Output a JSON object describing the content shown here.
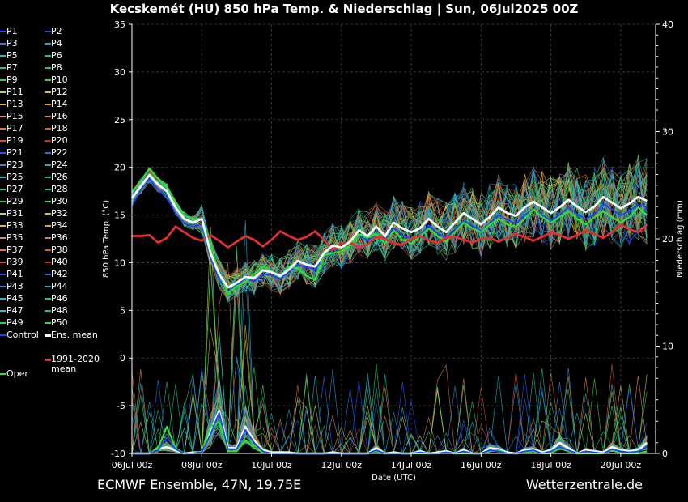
{
  "title": "Kecskemét  (HU)  850 hPa Temp. & Niederschlag | Sun, 06Jul2025 00Z",
  "footer_left": "ECMWF Ensemble, 47N, 19.75E",
  "footer_right": "Wetterzentrale.de",
  "legend": [
    {
      "label": "P1",
      "color": "#3050ff"
    },
    {
      "label": "P2",
      "color": "#2050e0"
    },
    {
      "label": "P3",
      "color": "#2b7bd6"
    },
    {
      "label": "P4",
      "color": "#2aa0d0"
    },
    {
      "label": "P5",
      "color": "#22b8c8"
    },
    {
      "label": "P6",
      "color": "#20c0a0"
    },
    {
      "label": "P7",
      "color": "#20c8b0"
    },
    {
      "label": "P8",
      "color": "#20c080"
    },
    {
      "label": "P9",
      "color": "#30d060"
    },
    {
      "label": "P10",
      "color": "#40d040"
    },
    {
      "label": "P11",
      "color": "#c8d040"
    },
    {
      "label": "P12",
      "color": "#d0c040"
    },
    {
      "label": "P13",
      "color": "#e0c030"
    },
    {
      "label": "P14",
      "color": "#e0a030"
    },
    {
      "label": "P15",
      "color": "#e09050"
    },
    {
      "label": "P16",
      "color": "#d08040"
    },
    {
      "label": "P17",
      "color": "#e07a40"
    },
    {
      "label": "P18",
      "color": "#c86030"
    },
    {
      "label": "P19",
      "color": "#d05040"
    },
    {
      "label": "P20",
      "color": "#c03030"
    },
    {
      "label": "P21",
      "color": "#3050ff"
    },
    {
      "label": "P22",
      "color": "#2070e0"
    },
    {
      "label": "P23",
      "color": "#2b8bd6"
    },
    {
      "label": "P24",
      "color": "#2aa0d0"
    },
    {
      "label": "P25",
      "color": "#22b8c8"
    },
    {
      "label": "P26",
      "color": "#20c0a0"
    },
    {
      "label": "P27",
      "color": "#20c8b0"
    },
    {
      "label": "P28",
      "color": "#20c080"
    },
    {
      "label": "P29",
      "color": "#30d060"
    },
    {
      "label": "P30",
      "color": "#40d040"
    },
    {
      "label": "P31",
      "color": "#c8d040"
    },
    {
      "label": "P32",
      "color": "#d0c040"
    },
    {
      "label": "P33",
      "color": "#e0c030"
    },
    {
      "label": "P34",
      "color": "#e0a030"
    },
    {
      "label": "P35",
      "color": "#e09050"
    },
    {
      "label": "P36",
      "color": "#d08040"
    },
    {
      "label": "P37",
      "color": "#e07a40"
    },
    {
      "label": "P38",
      "color": "#c86030"
    },
    {
      "label": "P39",
      "color": "#d05040"
    },
    {
      "label": "P40",
      "color": "#c03030"
    },
    {
      "label": "P41",
      "color": "#3050ff"
    },
    {
      "label": "P42",
      "color": "#2070e0"
    },
    {
      "label": "P43",
      "color": "#2b8bd6"
    },
    {
      "label": "P44",
      "color": "#2aa0d0"
    },
    {
      "label": "P45",
      "color": "#22b8c8"
    },
    {
      "label": "P46",
      "color": "#20c0a0"
    },
    {
      "label": "P47",
      "color": "#20c8b0"
    },
    {
      "label": "P48",
      "color": "#20c080"
    },
    {
      "label": "P49",
      "color": "#30d060"
    },
    {
      "label": "P50",
      "color": "#40d040"
    },
    {
      "label": "Control",
      "color": "#2040ff"
    },
    {
      "label": "Ens. mean",
      "color": "#ffffff"
    },
    {
      "label": "1991-2020\nmean",
      "color": "#e03030"
    },
    {
      "label": "Oper",
      "color": "#30e030"
    }
  ],
  "chart_data": {
    "type": "line",
    "title": "Kecskemét  (HU)  850 hPa Temp. & Niederschlag | Sun, 06Jul2025 00Z",
    "xlabel": "Date (UTC)",
    "ylabel_left": "850 hPa Temp. (°C)",
    "ylabel_right": "Niederschlag (mm)",
    "x_ticks": [
      "06Jul 00z",
      "08Jul 00z",
      "10Jul 00z",
      "12Jul 00z",
      "14Jul 00z",
      "16Jul 00z",
      "18Jul 00z",
      "20Jul 00z"
    ],
    "x_range_days": [
      0,
      15
    ],
    "ylim_left": [
      -10,
      35
    ],
    "y_ticks_left": [
      -10,
      -5,
      0,
      5,
      10,
      15,
      20,
      25,
      30,
      35
    ],
    "ylim_right": [
      0,
      40
    ],
    "y_ticks_right": [
      0,
      10,
      20,
      30,
      40
    ],
    "grid": true,
    "step_hours": 6,
    "series": [
      {
        "name": "Ens. mean",
        "axis": "left",
        "color": "#ffffff",
        "values": [
          16.8,
          18,
          19.2,
          18.2,
          17.5,
          15.8,
          14.6,
          14.2,
          14.6,
          11,
          8.8,
          7.4,
          7.9,
          8.5,
          8.4,
          9.2,
          9.0,
          8.6,
          9.3,
          10.2,
          9.8,
          9.6,
          11,
          11.8,
          11.6,
          12.2,
          13.4,
          12.8,
          13.8,
          12.8,
          14.2,
          13.6,
          13.2,
          13.6,
          14.6,
          13.8,
          13.2,
          14.2,
          15.2,
          14.6,
          14.0,
          14.8,
          15.8,
          15.2,
          14.9,
          15.8,
          16.4,
          15.8,
          15.2,
          15.8,
          16.6,
          15.9,
          15.3,
          15.9,
          16.9,
          16.3,
          15.7,
          16.2,
          16.9,
          16.5
        ]
      },
      {
        "name": "Control",
        "axis": "left",
        "color": "#2040ff",
        "values": [
          16.0,
          17.6,
          18.8,
          17.7,
          16.9,
          15.2,
          14.1,
          13.8,
          14.0,
          10.5,
          8.2,
          7.0,
          7.6,
          8.4,
          8.0,
          8.8,
          8.7,
          8.3,
          9.0,
          9.8,
          9.5,
          9.3,
          10.6,
          11.4,
          11.2,
          11.8,
          12.9,
          12.3,
          13.0,
          12.3,
          13.6,
          12.9,
          12.5,
          12.9,
          13.9,
          13.1,
          12.6,
          13.5,
          14.4,
          13.9,
          13.3,
          14.1,
          15.0,
          14.5,
          14.1,
          15.0,
          15.6,
          15.0,
          14.4,
          15.0,
          15.8,
          15.1,
          14.6,
          15.1,
          16.1,
          15.6,
          15.0,
          15.4,
          16.1,
          15.8
        ]
      },
      {
        "name": "Oper",
        "axis": "left",
        "color": "#30e030",
        "values": [
          17.4,
          18.5,
          19.9,
          18.8,
          17.9,
          16.3,
          15.0,
          14.5,
          14.6,
          11.8,
          8.9,
          6.8,
          7.5,
          8.0,
          8.8,
          9.6,
          9.1,
          8.5,
          9.6,
          9.4,
          8.6,
          8.2,
          10.8,
          11.0,
          11.2,
          11.8,
          13.0,
          12.6,
          13.0,
          12.0,
          13.4,
          12.4,
          12.0,
          12.8,
          13.6,
          12.8,
          12.2,
          13.2,
          14.2,
          13.6,
          13.2,
          14.0,
          14.6,
          14.0,
          13.8,
          14.6,
          15.6,
          14.8,
          14.2,
          14.8,
          15.4,
          14.6,
          14.0,
          14.8,
          15.4,
          14.8,
          14.2,
          14.8,
          15.8,
          15.0
        ]
      },
      {
        "name": "1991-2020 mean",
        "axis": "left",
        "color": "#e03030",
        "values": [
          12.8,
          12.8,
          12.9,
          12.1,
          12.6,
          13.8,
          13.2,
          12.6,
          12.3,
          12.9,
          12.3,
          11.6,
          12.2,
          12.8,
          12.4,
          11.7,
          12.4,
          13.3,
          12.8,
          12.4,
          12.7,
          13.3,
          12.4,
          11.3,
          12.0,
          12.1,
          11.6,
          11.9,
          12.7,
          12.5,
          12.0,
          11.9,
          12.5,
          12.8,
          12.3,
          12.1,
          12.6,
          12.7,
          12.4,
          12.1,
          12.5,
          12.6,
          12.2,
          12.6,
          13.0,
          12.7,
          12.3,
          12.7,
          13.2,
          12.9,
          12.5,
          12.9,
          13.4,
          13.0,
          12.6,
          13.2,
          14.0,
          13.5,
          13.2,
          14.0
        ]
      },
      {
        "name": "Ens. mean",
        "axis": "right",
        "color": "#ffffff",
        "values": [
          0,
          0,
          0,
          0.4,
          0.6,
          0.3,
          0,
          0.1,
          0.1,
          2,
          4.0,
          0.5,
          0.5,
          2.5,
          1.2,
          0.3,
          0.1,
          0.1,
          0.1,
          0,
          0,
          0,
          0,
          0.1,
          0,
          0,
          0,
          0,
          0.5,
          0,
          0.1,
          0,
          0,
          0.2,
          0,
          0.1,
          0.2,
          0,
          0.3,
          0,
          0,
          0.5,
          0.4,
          0.1,
          0,
          0.3,
          0.4,
          0.1,
          0.3,
          1.0,
          0.5,
          0,
          0.3,
          0.2,
          0.1,
          0.6,
          0.3,
          0.2,
          0.3,
          1.0
        ]
      },
      {
        "name": "Oper",
        "axis": "right",
        "color": "#30e030",
        "values": [
          0,
          0,
          0,
          0.5,
          2.5,
          0.5,
          0,
          0,
          0.2,
          2.5,
          2.9,
          0.2,
          0.2,
          1.2,
          0.5,
          0.1,
          0,
          0,
          0,
          0,
          0,
          0,
          0,
          0,
          0,
          0,
          0,
          0,
          0.2,
          0,
          0,
          0,
          0,
          0,
          0,
          0,
          0.1,
          0,
          0,
          0,
          0,
          0.2,
          0.3,
          0,
          0,
          0.1,
          0.2,
          0,
          0,
          0.5,
          0.2,
          0,
          0,
          0,
          0,
          0.3,
          0,
          0,
          0,
          0.2
        ]
      },
      {
        "name": "Control",
        "axis": "right",
        "color": "#2040ff",
        "values": [
          0,
          0,
          0,
          0.3,
          1.5,
          0.4,
          0,
          0,
          0.1,
          1.8,
          3.8,
          0.4,
          0.4,
          2.2,
          1.0,
          0.2,
          0,
          0,
          0,
          0,
          0,
          0,
          0,
          0,
          0,
          0,
          0,
          0,
          0.3,
          0,
          0,
          0,
          0,
          0.1,
          0,
          0,
          0.1,
          0,
          0.2,
          0,
          0,
          0.3,
          0.2,
          0,
          0,
          0.2,
          0.3,
          0,
          0.2,
          0.6,
          0.3,
          0,
          0.2,
          0.1,
          0,
          0.4,
          0.2,
          0.1,
          0.2,
          0.6
        ]
      }
    ]
  }
}
